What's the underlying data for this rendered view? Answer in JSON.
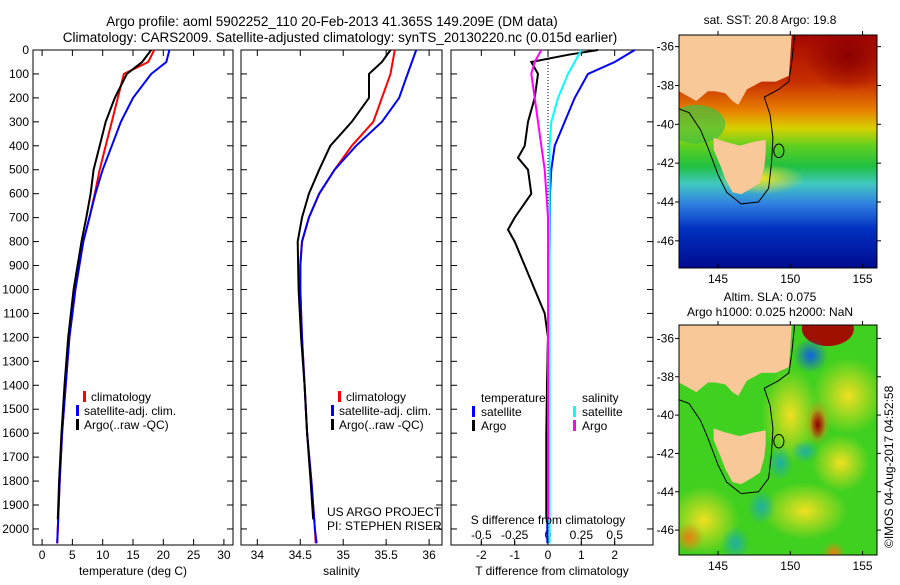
{
  "title": {
    "line1": "Argo profile: aoml 5902252_110 20-Feb-2013 41.365S 149.209E (DM data)",
    "line2": "Climatology: CARS2009. Satellite-adjusted climatology: synTS_20130220.nc (0.015d earlier)"
  },
  "colors": {
    "climatology": "#ff0000",
    "satellite": "#0000ff",
    "argo": "#000000",
    "sal_satellite": "#00ffff",
    "sal_argo": "#ff00ff"
  },
  "project": {
    "line1": "US ARGO PROJECT",
    "line2": "PI: STEPHEN RISER"
  },
  "legend_profiles": {
    "climatology": "climatology",
    "satellite": "satellite-adj. clim.",
    "argo": "Argo(..raw -QC)"
  },
  "legend_diff": {
    "temperature": "temperature",
    "salinity": "salinity",
    "satellite": "satellite",
    "argo": "Argo"
  },
  "maps": {
    "sst_title": "sat. SST: 20.8 Argo: 19.8",
    "sla_title1": "Altim. SLA: 0.075",
    "sla_title2": "Argo h1000: 0.025 h2000: NaN",
    "lon_ticks": [
      145,
      150,
      155
    ],
    "lat_ticks": [
      -36,
      -38,
      -40,
      -42,
      -44,
      -46
    ],
    "lon_range": [
      142.3,
      156.0
    ],
    "sst_lat_range": [
      -35.4,
      -47.4
    ],
    "sla_lat_range": [
      -35.3,
      -47.3
    ],
    "float_position": {
      "lon": 149.209,
      "lat": -41.365
    },
    "copyright": "©IMOS 04-Aug-2017 04:52:58"
  },
  "chart_data": [
    {
      "type": "line",
      "id": "temperature",
      "xlabel": "temperature (deg C)",
      "ylabel": "",
      "xlim": [
        -1.5,
        31.5
      ],
      "ylim": [
        0,
        2067
      ],
      "xticks": [
        0,
        5,
        10,
        15,
        20,
        25,
        30
      ],
      "yticks": [
        0,
        100,
        200,
        300,
        400,
        500,
        600,
        700,
        800,
        900,
        1000,
        1100,
        1200,
        1300,
        1400,
        1500,
        1600,
        1700,
        1800,
        1900,
        2000
      ],
      "series": [
        {
          "name": "climatology",
          "color": "#ff0000",
          "depth": [
            0,
            50,
            100,
            200,
            300,
            400,
            500,
            600,
            700,
            800,
            1000,
            1200,
            1400,
            1600,
            1800,
            2000,
            2060
          ],
          "values": [
            18.5,
            17.5,
            13.5,
            12.5,
            11.5,
            10.5,
            9.5,
            8.7,
            7.8,
            6.8,
            5.5,
            4.5,
            3.9,
            3.3,
            2.9,
            2.6,
            2.5
          ]
        },
        {
          "name": "satellite-adj. clim.",
          "color": "#0000ff",
          "depth": [
            0,
            50,
            100,
            200,
            300,
            400,
            500,
            600,
            700,
            800,
            1000,
            1200,
            1400,
            1600,
            1800,
            2000,
            2060
          ],
          "values": [
            21,
            20.5,
            18,
            15,
            13,
            11.5,
            10,
            8.8,
            7.8,
            6.8,
            5.5,
            4.5,
            3.9,
            3.3,
            2.9,
            2.6,
            2.5
          ]
        },
        {
          "name": "Argo(..raw -QC)",
          "color": "#000000",
          "depth": [
            0,
            50,
            100,
            200,
            300,
            400,
            500,
            600,
            700,
            800,
            1000,
            1200,
            1400,
            1600,
            1800,
            1960
          ],
          "values": [
            18,
            16.5,
            14,
            12,
            10.5,
            9.5,
            8.5,
            8,
            7.3,
            6.5,
            5.2,
            4.3,
            3.7,
            3.2,
            2.8,
            2.6
          ]
        }
      ]
    },
    {
      "type": "line",
      "id": "salinity",
      "xlabel": "salinity",
      "xlim": [
        33.81,
        36.15
      ],
      "ylim": [
        0,
        2067
      ],
      "xticks": [
        34,
        34.5,
        35,
        35.5,
        36
      ],
      "series": [
        {
          "name": "climatology",
          "color": "#ff0000",
          "depth": [
            0,
            100,
            200,
            300,
            400,
            500,
            600,
            700,
            800,
            900,
            1000,
            1200,
            1400,
            1600,
            1800,
            2000,
            2060
          ],
          "values": [
            35.6,
            35.55,
            35.45,
            35.35,
            35.1,
            34.9,
            34.72,
            34.6,
            34.52,
            34.5,
            34.5,
            34.52,
            34.55,
            34.58,
            34.63,
            34.67,
            34.68
          ]
        },
        {
          "name": "satellite-adj. clim.",
          "color": "#0000ff",
          "depth": [
            0,
            100,
            200,
            300,
            400,
            500,
            600,
            700,
            800,
            900,
            1000,
            1200,
            1400,
            1600,
            1800,
            2000,
            2060
          ],
          "values": [
            35.85,
            35.75,
            35.65,
            35.45,
            35.15,
            34.9,
            34.72,
            34.6,
            34.52,
            34.5,
            34.5,
            34.52,
            34.55,
            34.58,
            34.63,
            34.67,
            34.69
          ]
        },
        {
          "name": "Argo(..raw -QC)",
          "color": "#000000",
          "depth": [
            0,
            50,
            100,
            200,
            300,
            400,
            500,
            600,
            700,
            800,
            1000,
            1200,
            1400,
            1600,
            1800,
            1960
          ],
          "values": [
            35.55,
            35.45,
            35.3,
            35.3,
            35.1,
            34.85,
            34.72,
            34.6,
            34.52,
            34.47,
            34.48,
            34.51,
            34.55,
            34.58,
            34.62,
            34.65
          ]
        }
      ]
    },
    {
      "type": "line",
      "id": "difference",
      "xlabel": "T difference from climatology",
      "x2label": "S difference from climatology",
      "xlim": [
        -2.91,
        3.15
      ],
      "ylim": [
        0,
        2067
      ],
      "xticks": [
        -2,
        -1,
        0,
        1,
        2
      ],
      "x2ticks": [
        -0.5,
        -0.25,
        0,
        0.25,
        0.5
      ],
      "x2ticklabels": [
        "-0.5",
        "-0.25",
        "0",
        "0.25",
        "0.5"
      ],
      "s_scale": 4,
      "series": [
        {
          "name": "temperature satellite",
          "color": "#0000ff",
          "kind": "T",
          "depth": [
            0,
            50,
            100,
            200,
            300,
            400,
            500,
            600,
            800,
            1000,
            1200,
            1400,
            1600,
            1800,
            2060
          ],
          "values": [
            2.6,
            2.0,
            1.2,
            0.8,
            0.5,
            0.2,
            0.1,
            0.06,
            0.05,
            0.03,
            0.0,
            -0.02,
            -0.02,
            -0.02,
            -0.02
          ]
        },
        {
          "name": "temperature Argo",
          "color": "#000000",
          "kind": "T",
          "depth": [
            0,
            20,
            50,
            100,
            200,
            300,
            400,
            450,
            500,
            600,
            700,
            750,
            800,
            900,
            1000,
            1100,
            1200,
            1400,
            1600,
            1800,
            1960
          ],
          "values": [
            1.5,
            0.6,
            -0.5,
            -0.3,
            -0.4,
            -0.6,
            -0.7,
            -0.9,
            -0.6,
            -0.5,
            -1.0,
            -1.2,
            -1.0,
            -0.7,
            -0.4,
            -0.1,
            0.0,
            -0.03,
            -0.05,
            -0.05,
            -0.05
          ]
        },
        {
          "name": "salinity satellite",
          "color": "#00ffff",
          "kind": "S",
          "depth": [
            0,
            100,
            200,
            300,
            400,
            600,
            1000,
            1400,
            2060
          ],
          "values": [
            0.25,
            0.15,
            0.075,
            0.025,
            0.012,
            0.012,
            0.012,
            0.012,
            0.012
          ]
        },
        {
          "name": "salinity Argo",
          "color": "#ff00ff",
          "kind": "S",
          "depth": [
            0,
            50,
            100,
            200,
            300,
            400,
            500,
            700,
            1000,
            1400,
            1960
          ],
          "values": [
            -0.05,
            -0.1,
            -0.125,
            -0.1,
            -0.075,
            -0.05,
            -0.025,
            0,
            0,
            0,
            0
          ]
        }
      ]
    }
  ]
}
